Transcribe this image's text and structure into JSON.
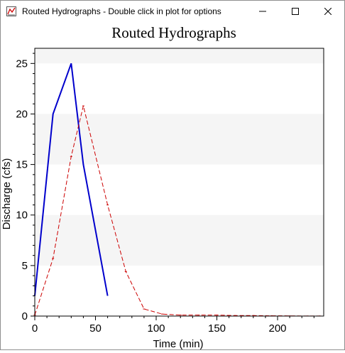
{
  "window": {
    "title": "Routed Hydrographs - Double click in plot for options",
    "icons": {
      "app": "chart-app-icon",
      "minimize": "minimize-icon",
      "maximize": "maximize-icon",
      "close": "close-icon"
    }
  },
  "chart_data": {
    "type": "line",
    "title": "Routed Hydrographs",
    "xlabel": "Time (min)",
    "ylabel": "Discharge (cfs)",
    "xlim": [
      0,
      238
    ],
    "ylim": [
      0,
      26.5
    ],
    "xticks": [
      0,
      50,
      100,
      150,
      200
    ],
    "yticks": [
      0,
      5,
      10,
      15,
      20,
      25
    ],
    "grid": "alternating horizontal bands",
    "legend": "none",
    "series": [
      {
        "color": "#0000cc",
        "style": "solid",
        "x": [
          0,
          15,
          30,
          40,
          60
        ],
        "y": [
          2,
          20,
          25,
          15,
          2
        ]
      },
      {
        "color": "#cc0000",
        "style": "dashed",
        "x": [
          0,
          15,
          30,
          40,
          60,
          75,
          90,
          105,
          120,
          135,
          150,
          165,
          180,
          195,
          210,
          225,
          235
        ],
        "y": [
          0.1,
          5.7,
          15.8,
          20.8,
          11.0,
          4.4,
          0.7,
          0.2,
          0.1,
          0.1,
          0.1,
          0.05,
          0.05,
          0.03,
          0.02,
          0.01,
          0.01
        ]
      }
    ]
  }
}
